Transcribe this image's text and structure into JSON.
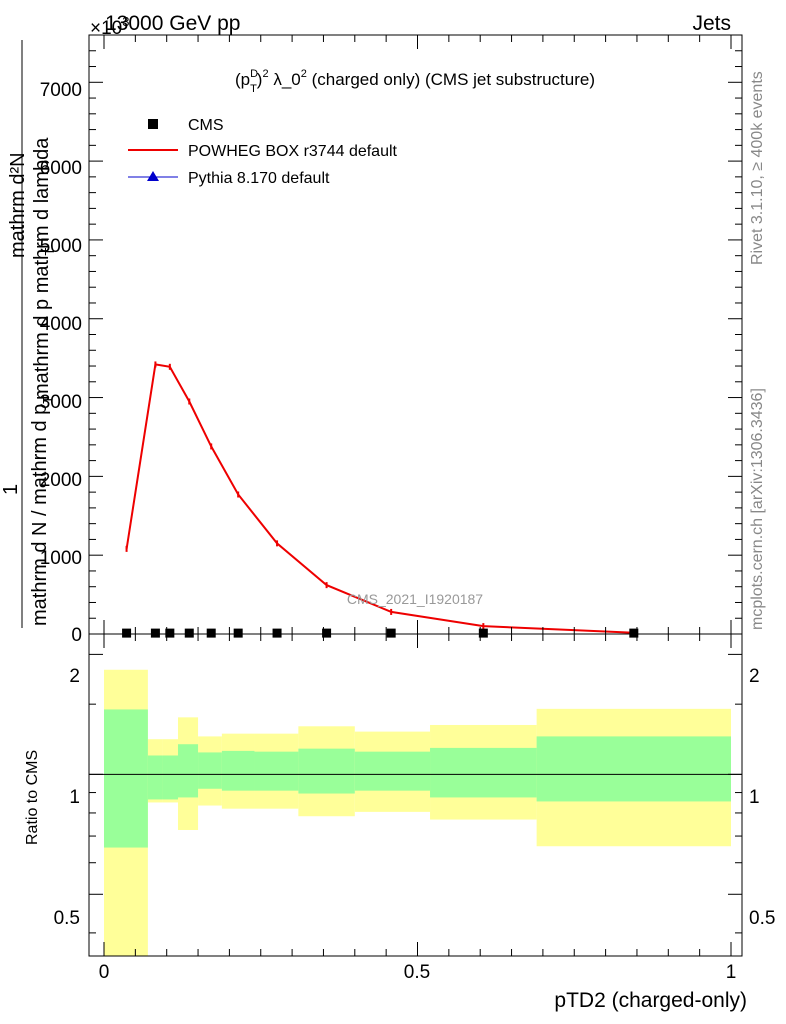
{
  "header": {
    "energy_label": "13000 GeV pp",
    "process_label": "Jets",
    "exponent_label": "×10",
    "exponent_power": "3"
  },
  "side_labels": {
    "rivet": "Rivet 3.1.10, ≥ 400k events",
    "mcplots": "mcplots.cern.ch [arXiv:1306.3436]"
  },
  "colors": {
    "cms": "#000000",
    "powheg": "#ee0000",
    "pythia": "#0000cc",
    "band_inner": "#99ff99",
    "band_outer": "#ffff99"
  },
  "chart_data": [
    {
      "type": "line",
      "title": "(p_T^D)^2 λ_0^2 (charged only) (CMS jet substructure)",
      "title_parts": {
        "p": "(p",
        "D": "D",
        "T": "T",
        "close": ")",
        "sq": "2",
        "lam": " λ_0",
        "sq2": "2",
        "rest": " (charged only) (CMS jet substructure)"
      },
      "ylabel": "1/(mathrm d N) mathrm d^2N / (mathrm d p_T mathrm d lambda)",
      "ylabel_parts": {
        "num": "mathrm d²N",
        "den": "mathrm d p  mathrm d lambda",
        "den_sub": "T",
        "left_num": "1",
        "left_den": "mathrm d N / mathrm d p",
        "left_den_sub": "T"
      },
      "xlim": [
        0,
        1
      ],
      "ylim": [
        0,
        7600
      ],
      "y_scale_factor": 1000,
      "yticks": [
        0,
        1000,
        2000,
        3000,
        4000,
        5000,
        6000,
        7000
      ],
      "ytick_labels": [
        "0",
        "1000",
        "2000",
        "3000",
        "4000",
        "5000",
        "6000",
        "7000"
      ],
      "watermark": "CMS_2021_I1920187",
      "legend": [
        {
          "key": "cms",
          "label": "CMS"
        },
        {
          "key": "powheg",
          "label": "POWHEG BOX r3744 default"
        },
        {
          "key": "pythia",
          "label": "Pythia 8.170 default"
        }
      ],
      "series": [
        {
          "name": "CMS",
          "x": [
            0.036,
            0.082,
            0.105,
            0.136,
            0.171,
            0.214,
            0.276,
            0.355,
            0.458,
            0.605,
            0.845
          ],
          "y": [
            5,
            5,
            5,
            5,
            5,
            5,
            5,
            5,
            5,
            5,
            5
          ]
        },
        {
          "name": "POWHEG BOX r3744 default",
          "x": [
            0.036,
            0.082,
            0.105,
            0.136,
            0.171,
            0.214,
            0.276,
            0.355,
            0.458,
            0.605,
            0.845
          ],
          "y": [
            1080,
            3420,
            3390,
            2950,
            2380,
            1770,
            1150,
            620,
            280,
            100,
            15
          ]
        }
      ]
    },
    {
      "type": "area",
      "ylabel": "Ratio to CMS",
      "xlabel": "pTD2 (charged-only)",
      "xlim": [
        0,
        1
      ],
      "ylim": [
        0.35,
        2.25
      ],
      "yscale": "log",
      "yticks": [
        0.5,
        1,
        2
      ],
      "ytick_labels": [
        "0.5",
        "1",
        "2"
      ],
      "xticks": [
        0,
        0.5,
        1
      ],
      "xtick_labels": [
        "0",
        "0.5",
        "1"
      ],
      "bins": [
        {
          "lo": 0.0,
          "hi": 0.07,
          "inner": [
            0.655,
            1.455
          ],
          "outer": [
            0.3,
            1.83
          ]
        },
        {
          "lo": 0.07,
          "hi": 0.094,
          "inner": [
            0.865,
            1.115
          ],
          "outer": [
            0.85,
            1.225
          ]
        },
        {
          "lo": 0.094,
          "hi": 0.118,
          "inner": [
            0.865,
            1.115
          ],
          "outer": [
            0.85,
            1.225
          ]
        },
        {
          "lo": 0.118,
          "hi": 0.15,
          "inner": [
            0.875,
            1.19
          ],
          "outer": [
            0.725,
            1.39
          ]
        },
        {
          "lo": 0.15,
          "hi": 0.188,
          "inner": [
            0.92,
            1.135
          ],
          "outer": [
            0.835,
            1.245
          ]
        },
        {
          "lo": 0.188,
          "hi": 0.24,
          "inner": [
            0.91,
            1.145
          ],
          "outer": [
            0.82,
            1.265
          ]
        },
        {
          "lo": 0.24,
          "hi": 0.31,
          "inner": [
            0.91,
            1.14
          ],
          "outer": [
            0.82,
            1.265
          ]
        },
        {
          "lo": 0.31,
          "hi": 0.4,
          "inner": [
            0.895,
            1.16
          ],
          "outer": [
            0.785,
            1.32
          ]
        },
        {
          "lo": 0.4,
          "hi": 0.52,
          "inner": [
            0.91,
            1.14
          ],
          "outer": [
            0.805,
            1.28
          ]
        },
        {
          "lo": 0.52,
          "hi": 0.69,
          "inner": [
            0.875,
            1.165
          ],
          "outer": [
            0.77,
            1.33
          ]
        },
        {
          "lo": 0.69,
          "hi": 1.0,
          "inner": [
            0.855,
            1.245
          ],
          "outer": [
            0.66,
            1.46
          ]
        }
      ]
    }
  ]
}
